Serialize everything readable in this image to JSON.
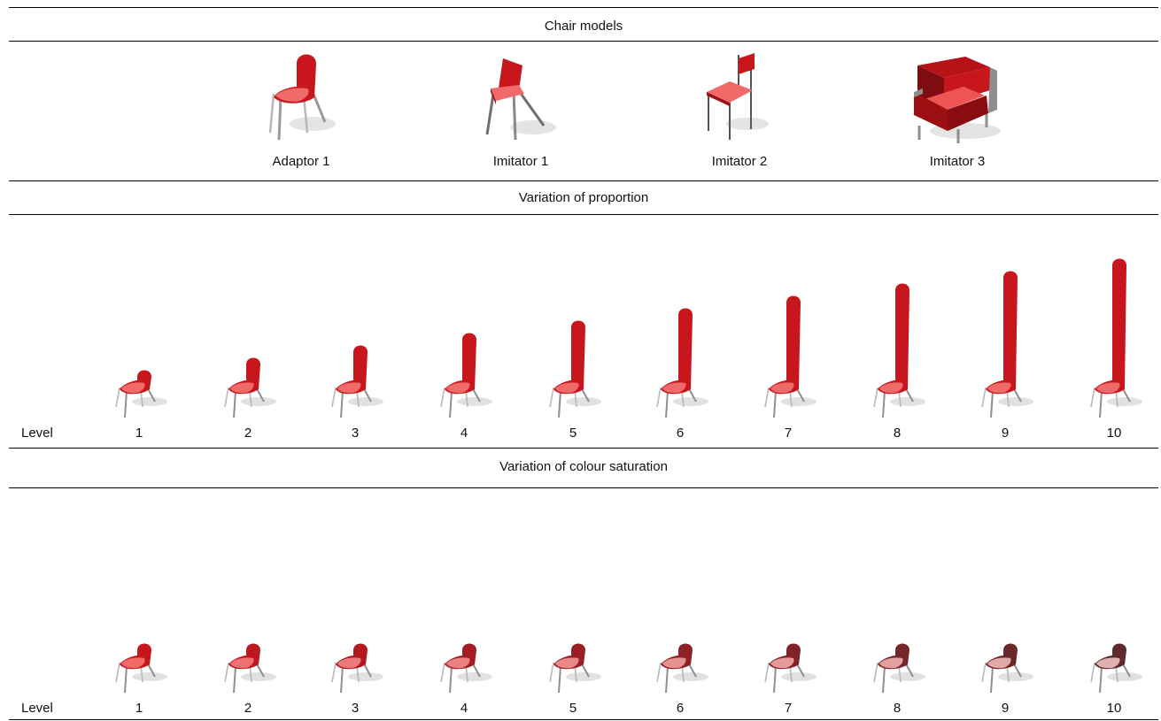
{
  "sections": {
    "models": {
      "title": "Chair models",
      "items": [
        {
          "label": "Adaptor 1",
          "icon": "shell-chair-icon"
        },
        {
          "label": "Imitator 1",
          "icon": "angled-chair-icon"
        },
        {
          "label": "Imitator 2",
          "icon": "frame-chair-icon"
        },
        {
          "label": "Imitator 3",
          "icon": "armchair-icon"
        }
      ]
    },
    "proportion": {
      "title": "Variation of proportion",
      "level_label": "Level",
      "levels": [
        "1",
        "2",
        "3",
        "4",
        "5",
        "6",
        "7",
        "8",
        "9",
        "10"
      ]
    },
    "saturation": {
      "title": "Variation of colour saturation",
      "level_label": "Level",
      "levels": [
        "1",
        "2",
        "3",
        "4",
        "5",
        "6",
        "7",
        "8",
        "9",
        "10"
      ]
    }
  },
  "colors": {
    "shell_saturated": "#c8161d",
    "seat_saturated": "#f06a6a",
    "shell_desaturated": "#5e2a2c",
    "seat_desaturated": "#dfb0b0",
    "legs": "#b8b8b8",
    "armchair_body": "#9c1014",
    "armchair_frame": "#8e8e8e"
  }
}
